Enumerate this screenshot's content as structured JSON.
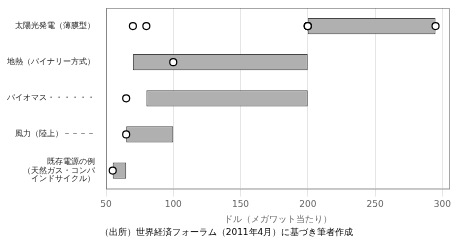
{
  "chart_data": {
    "type": "bar",
    "orientation": "horizontal",
    "categories": [
      "既存電源の例\n（天然ガス・コンバ\nインドサイクル）",
      "風力（陸上）－－－－",
      "バイオマス・・・・・・",
      "地熱（バイナリー方式）",
      "太陽光発電（薄膜型）"
    ],
    "values": [
      [
        55,
        65
      ],
      [
        65,
        100
      ],
      [
        80,
        200
      ],
      [
        70,
        200
      ],
      [
        200,
        295
      ]
    ],
    "xlabel": "ドル（メガワット当たり）",
    "caption": "（出所）世界経済フォーラム（2011年4月）に基づき筆者作成",
    "xlim": [
      50,
      305
    ],
    "xticks": [
      50,
      100,
      150,
      200,
      250,
      300
    ],
    "color": "#b0b0b0",
    "marker": "circle",
    "grid": true
  }
}
